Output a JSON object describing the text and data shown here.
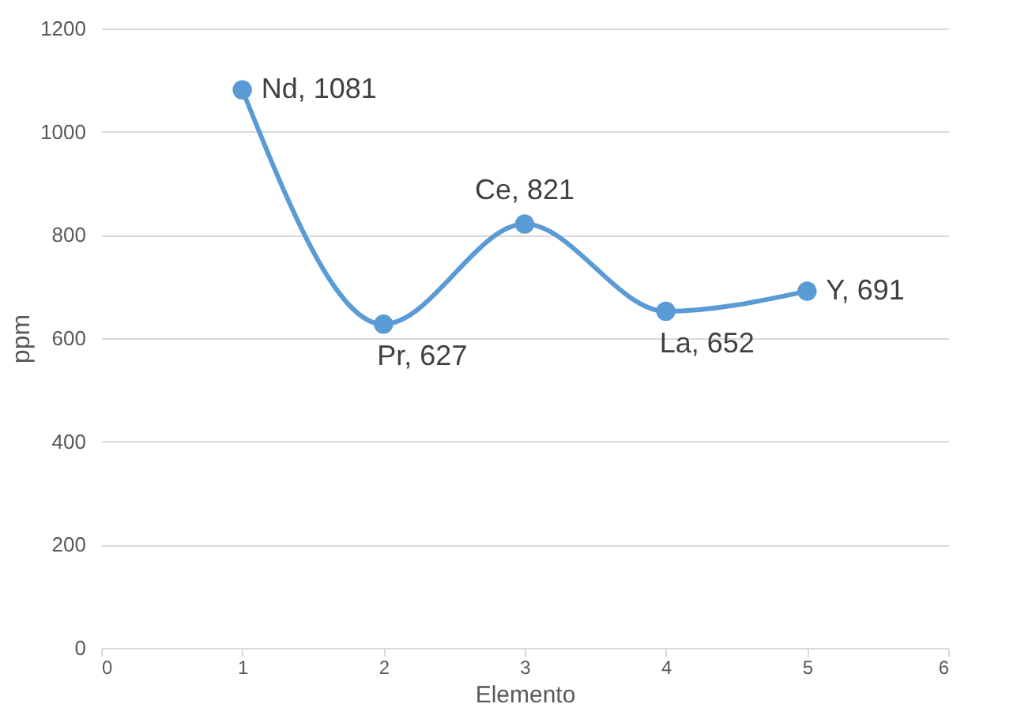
{
  "chart_data": {
    "type": "line",
    "xlabel": "Elemento",
    "ylabel": "ppm",
    "x": [
      1,
      2,
      3,
      4,
      5
    ],
    "series": [
      {
        "color": "#5b9bd5",
        "values": [
          1081,
          627,
          821,
          652,
          691
        ],
        "value_labels": [
          "Nd, 1081",
          "Pr, 627",
          "Ce, 821",
          "La, 652",
          "Y, 691"
        ]
      }
    ],
    "xlim": [
      0,
      6
    ],
    "xticks": [
      0,
      1,
      2,
      3,
      4,
      5,
      6
    ],
    "ylim": [
      0,
      1200
    ],
    "yticks": [
      0,
      200,
      400,
      600,
      800,
      1000,
      1200
    ],
    "grid": "y",
    "marker": "circle",
    "line_style": "solid"
  }
}
